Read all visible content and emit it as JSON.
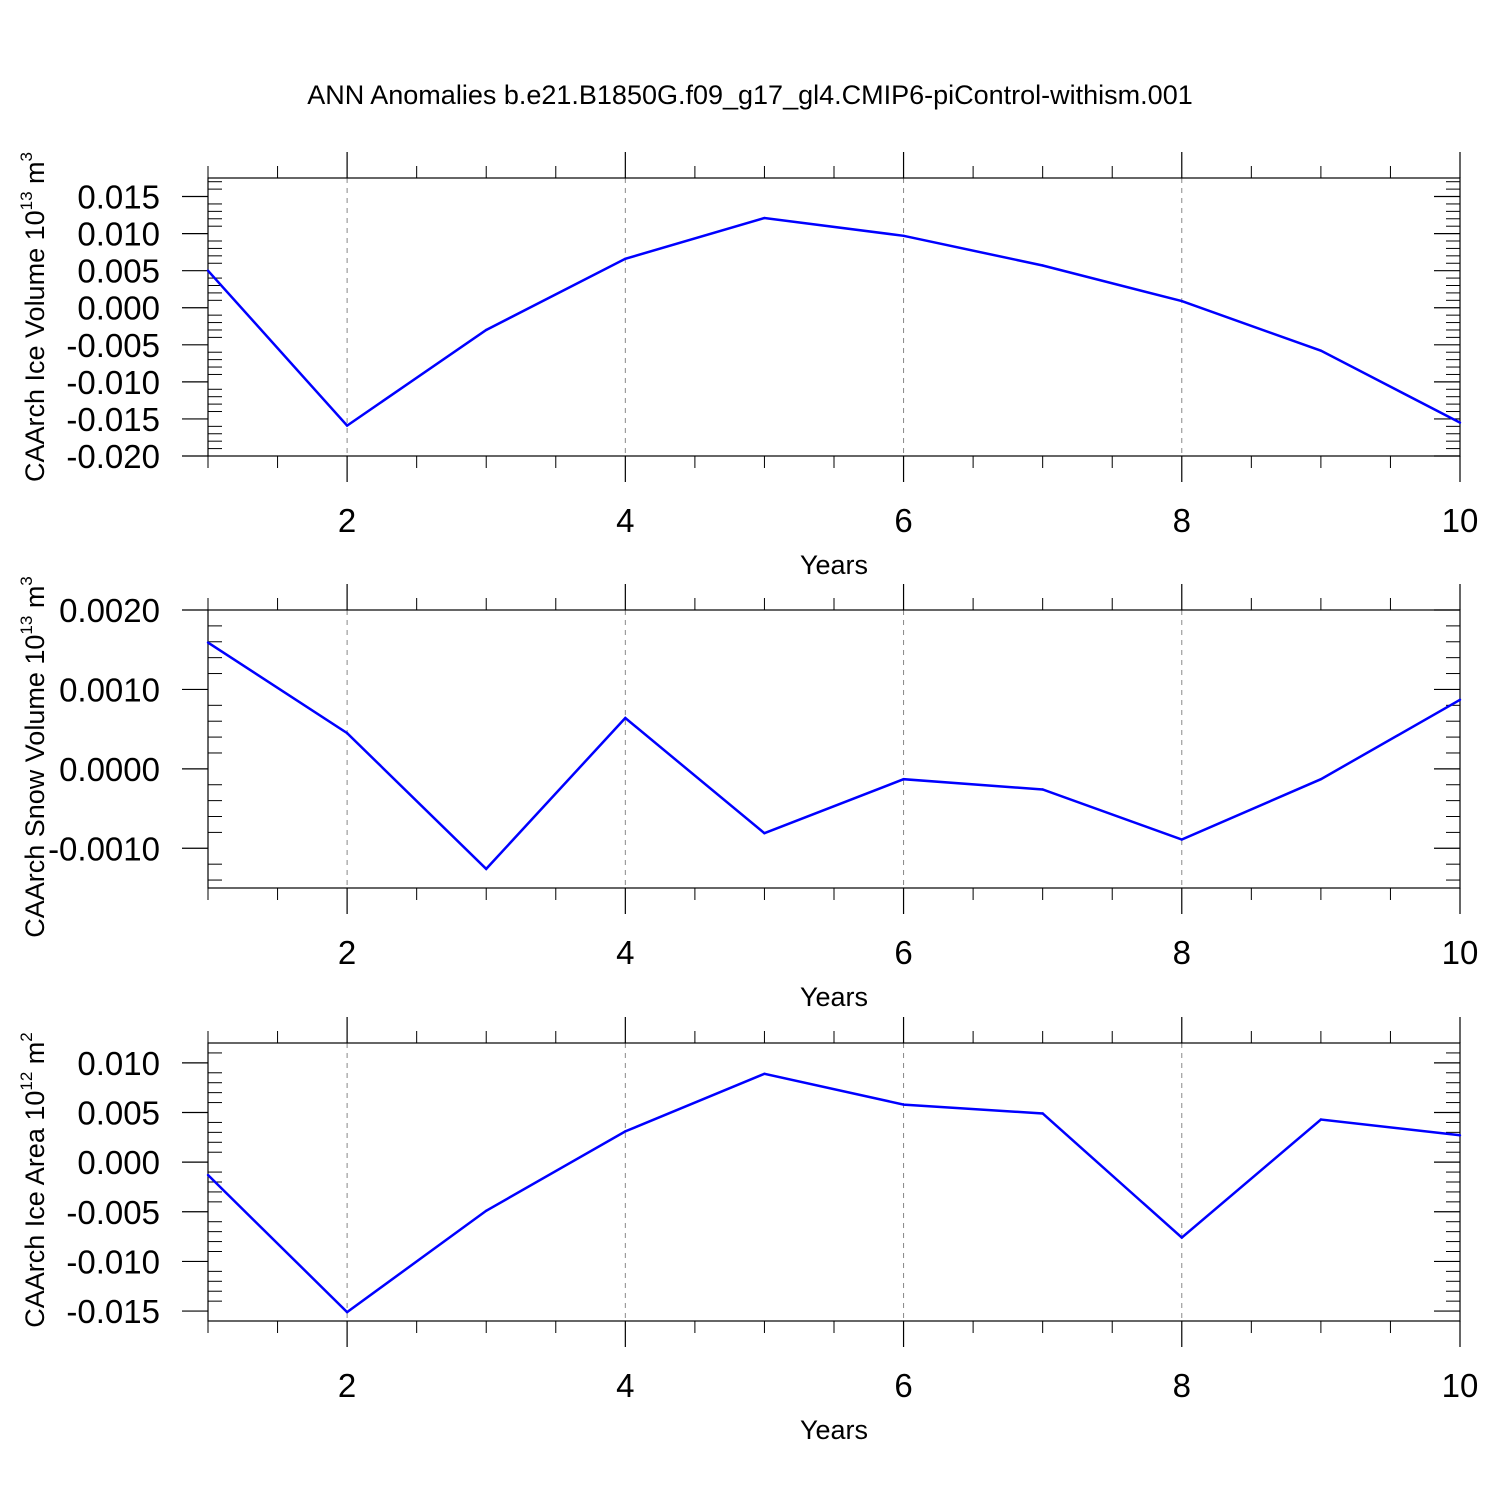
{
  "title": "ANN Anomalies b.e21.B1850G.f09_g17_gl4.CMIP6-piControl-withism.001",
  "chart_data": [
    {
      "type": "line",
      "ylabel": "CAArch Ice Volume",
      "ylabel_exp_base": "10",
      "ylabel_exp": "13",
      "ylabel_unit": "m",
      "ylabel_unit_exp": "3",
      "xlabel": "Years",
      "xlim": [
        1,
        10
      ],
      "ylim": [
        -0.02,
        0.0175
      ],
      "xticks": [
        2,
        4,
        6,
        8,
        10
      ],
      "xtick_labels": [
        "2",
        "4",
        "6",
        "8",
        "10"
      ],
      "yticks": [
        -0.02,
        -0.015,
        -0.01,
        -0.005,
        0.0,
        0.005,
        0.01,
        0.015
      ],
      "ytick_labels": [
        "-0.020",
        "-0.015",
        "-0.010",
        "-0.005",
        "0.000",
        "0.005",
        "0.010",
        "0.015"
      ],
      "grid": "dashed vertical at major x ticks",
      "line_color": "#0000ff",
      "x": [
        1,
        2,
        3,
        4,
        5,
        6,
        7,
        8,
        9,
        10
      ],
      "values": [
        0.005,
        -0.0159,
        -0.003,
        0.0066,
        0.0121,
        0.0097,
        0.0057,
        0.0009,
        -0.0058,
        -0.0155
      ]
    },
    {
      "type": "line",
      "ylabel": "CAArch Snow Volume",
      "ylabel_exp_base": "10",
      "ylabel_exp": "13",
      "ylabel_unit": "m",
      "ylabel_unit_exp": "3",
      "xlabel": "Years",
      "xlim": [
        1,
        10
      ],
      "ylim": [
        -0.0015,
        0.002
      ],
      "xticks": [
        2,
        4,
        6,
        8,
        10
      ],
      "xtick_labels": [
        "2",
        "4",
        "6",
        "8",
        "10"
      ],
      "yticks": [
        -0.001,
        0.0,
        0.001,
        0.002
      ],
      "ytick_labels": [
        "-0.0010",
        "0.0000",
        "0.0010",
        "0.0020"
      ],
      "grid": "dashed vertical at major x ticks",
      "line_color": "#0000ff",
      "x": [
        1,
        2,
        3,
        4,
        5,
        6,
        7,
        8,
        9,
        10
      ],
      "values": [
        0.00159,
        0.00045,
        -0.00126,
        0.00064,
        -0.00081,
        -0.00013,
        -0.00026,
        -0.00089,
        -0.00013,
        0.00087
      ]
    },
    {
      "type": "line",
      "ylabel": "CAArch Ice Area",
      "ylabel_exp_base": "10",
      "ylabel_exp": "12",
      "ylabel_unit": "m",
      "ylabel_unit_exp": "2",
      "xlabel": "Years",
      "xlim": [
        1,
        10
      ],
      "ylim": [
        -0.016,
        0.012
      ],
      "xticks": [
        2,
        4,
        6,
        8,
        10
      ],
      "xtick_labels": [
        "2",
        "4",
        "6",
        "8",
        "10"
      ],
      "yticks": [
        -0.015,
        -0.01,
        -0.005,
        0.0,
        0.005,
        0.01
      ],
      "ytick_labels": [
        "-0.015",
        "-0.010",
        "-0.005",
        "0.000",
        "0.005",
        "0.010"
      ],
      "grid": "dashed vertical at major x ticks",
      "line_color": "#0000ff",
      "x": [
        1,
        2,
        3,
        4,
        5,
        6,
        7,
        8,
        9,
        10
      ],
      "values": [
        -0.0013,
        -0.0151,
        -0.0049,
        0.0031,
        0.0089,
        0.0058,
        0.0049,
        -0.0076,
        0.0043,
        0.0027
      ]
    }
  ]
}
